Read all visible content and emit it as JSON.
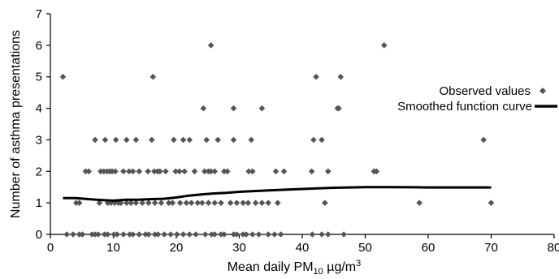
{
  "chart_data": {
    "type": "scatter",
    "xlabel_prefix": "Mean daily PM",
    "xlabel_subscript": "10",
    "xlabel_suffix": " µg/m",
    "xlabel_superscript": "3",
    "ylabel": "Number of asthma presentations",
    "xlim": [
      0,
      80
    ],
    "ylim": [
      0,
      7
    ],
    "x_ticks": [
      0,
      10,
      20,
      30,
      40,
      50,
      60,
      70,
      80
    ],
    "y_ticks": [
      0,
      1,
      2,
      3,
      4,
      5,
      6,
      7
    ],
    "grid": false,
    "legend_position": "right",
    "series": [
      {
        "name": "Observed values",
        "kind": "scatter",
        "color": "#555555",
        "points": [
          [
            2,
            5
          ],
          [
            25.5,
            6
          ],
          [
            53,
            6
          ],
          [
            16.3,
            5
          ],
          [
            42.2,
            5
          ],
          [
            46.1,
            5
          ],
          [
            24.3,
            4
          ],
          [
            29.1,
            4
          ],
          [
            33.6,
            4
          ],
          [
            45.6,
            4
          ],
          [
            45.8,
            4
          ],
          [
            7.1,
            3
          ],
          [
            8.7,
            3
          ],
          [
            10.4,
            3
          ],
          [
            12.1,
            3
          ],
          [
            13.6,
            3
          ],
          [
            16.1,
            3
          ],
          [
            19.6,
            3
          ],
          [
            21.1,
            3
          ],
          [
            22.1,
            3
          ],
          [
            24.8,
            3
          ],
          [
            26.6,
            3
          ],
          [
            29.1,
            3
          ],
          [
            31.9,
            3
          ],
          [
            41.8,
            3
          ],
          [
            43.1,
            3
          ],
          [
            68.8,
            3
          ],
          [
            5.6,
            2
          ],
          [
            6.1,
            2
          ],
          [
            8,
            2
          ],
          [
            8.5,
            2
          ],
          [
            9,
            2
          ],
          [
            9.4,
            2
          ],
          [
            9.8,
            2
          ],
          [
            10.3,
            2
          ],
          [
            11.6,
            2
          ],
          [
            12.5,
            2
          ],
          [
            13.1,
            2
          ],
          [
            14.1,
            2
          ],
          [
            15.5,
            2
          ],
          [
            16.5,
            2
          ],
          [
            17,
            2
          ],
          [
            17.4,
            2
          ],
          [
            18.3,
            2
          ],
          [
            19.9,
            2
          ],
          [
            20.5,
            2
          ],
          [
            21.3,
            2
          ],
          [
            22.9,
            2
          ],
          [
            24.5,
            2
          ],
          [
            25.1,
            2
          ],
          [
            25.5,
            2
          ],
          [
            26.1,
            2
          ],
          [
            27.6,
            2
          ],
          [
            28.1,
            2
          ],
          [
            31.5,
            2
          ],
          [
            32.1,
            2
          ],
          [
            35.8,
            2
          ],
          [
            37.1,
            2
          ],
          [
            41.5,
            2
          ],
          [
            44.1,
            2
          ],
          [
            51.4,
            2
          ],
          [
            51.8,
            2
          ],
          [
            4.1,
            1
          ],
          [
            4.6,
            1
          ],
          [
            7.8,
            1
          ],
          [
            9.1,
            1
          ],
          [
            9.6,
            1
          ],
          [
            10.2,
            1
          ],
          [
            10.8,
            1
          ],
          [
            11.2,
            1
          ],
          [
            12.1,
            1
          ],
          [
            12.8,
            1
          ],
          [
            13.6,
            1
          ],
          [
            14.6,
            1
          ],
          [
            15.6,
            1
          ],
          [
            16.6,
            1
          ],
          [
            17.6,
            1
          ],
          [
            18.8,
            1
          ],
          [
            19.4,
            1
          ],
          [
            20.6,
            1
          ],
          [
            21.6,
            1
          ],
          [
            22.4,
            1
          ],
          [
            23.4,
            1
          ],
          [
            24.1,
            1
          ],
          [
            25.1,
            1
          ],
          [
            26.1,
            1
          ],
          [
            27.1,
            1
          ],
          [
            28.6,
            1
          ],
          [
            29.6,
            1
          ],
          [
            30.6,
            1
          ],
          [
            31.4,
            1
          ],
          [
            32.6,
            1
          ],
          [
            33.6,
            1
          ],
          [
            34.6,
            1
          ],
          [
            36.1,
            1
          ],
          [
            43.6,
            1
          ],
          [
            58.6,
            1
          ],
          [
            70,
            1
          ],
          [
            2.6,
            0
          ],
          [
            3.6,
            0
          ],
          [
            4.6,
            0
          ],
          [
            5.1,
            0
          ],
          [
            6.6,
            0
          ],
          [
            7.1,
            0
          ],
          [
            7.6,
            0
          ],
          [
            8.6,
            0
          ],
          [
            9.1,
            0
          ],
          [
            10.1,
            0
          ],
          [
            10.6,
            0
          ],
          [
            11.6,
            0
          ],
          [
            12.6,
            0
          ],
          [
            13.1,
            0
          ],
          [
            14.1,
            0
          ],
          [
            15.1,
            0
          ],
          [
            15.6,
            0
          ],
          [
            16.6,
            0
          ],
          [
            17.1,
            0
          ],
          [
            18.1,
            0
          ],
          [
            19.1,
            0
          ],
          [
            20.1,
            0
          ],
          [
            21.1,
            0
          ],
          [
            22.1,
            0
          ],
          [
            23.1,
            0
          ],
          [
            24.6,
            0
          ],
          [
            25.6,
            0
          ],
          [
            26.1,
            0
          ],
          [
            27.1,
            0
          ],
          [
            27.6,
            0
          ],
          [
            29.1,
            0
          ],
          [
            29.6,
            0
          ],
          [
            30.6,
            0
          ],
          [
            31.1,
            0
          ],
          [
            32.1,
            0
          ],
          [
            33.1,
            0
          ],
          [
            34.6,
            0
          ],
          [
            35.6,
            0
          ],
          [
            36.6,
            0
          ],
          [
            41.6,
            0
          ],
          [
            43.1,
            0
          ],
          [
            44.1,
            0
          ],
          [
            46.6,
            0
          ]
        ]
      },
      {
        "name": "Smoothed function curve",
        "kind": "line",
        "color": "#000000",
        "points": [
          [
            2,
            1.15
          ],
          [
            4,
            1.15
          ],
          [
            6,
            1.12
          ],
          [
            8,
            1.09
          ],
          [
            10,
            1.07
          ],
          [
            12,
            1.1
          ],
          [
            14,
            1.1
          ],
          [
            16,
            1.12
          ],
          [
            18,
            1.13
          ],
          [
            20,
            1.17
          ],
          [
            22,
            1.23
          ],
          [
            24,
            1.27
          ],
          [
            26,
            1.3
          ],
          [
            28,
            1.32
          ],
          [
            30,
            1.35
          ],
          [
            35,
            1.4
          ],
          [
            40,
            1.44
          ],
          [
            45,
            1.48
          ],
          [
            50,
            1.5
          ],
          [
            55,
            1.5
          ],
          [
            60,
            1.49
          ],
          [
            65,
            1.49
          ],
          [
            70,
            1.49
          ]
        ]
      }
    ]
  }
}
